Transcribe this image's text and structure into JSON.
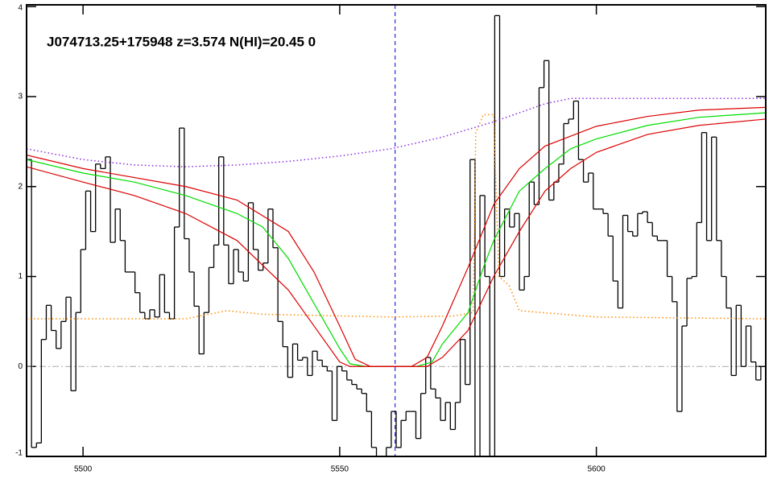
{
  "chart_data": {
    "type": "spectrum",
    "title": "J074713.25+175948 z=3.574 N(HI)=20.45 0",
    "xlim": [
      5489,
      5633
    ],
    "ylim": [
      -1,
      4.02
    ],
    "xticks": [
      5500,
      5550,
      5600
    ],
    "yticks": [
      -1,
      0,
      1,
      2,
      3,
      4
    ],
    "hline": 0,
    "vline": 5560.8,
    "series": [
      {
        "style": "step",
        "color": "#000000",
        "x": [
          5489.0,
          5489.96,
          5490.92,
          5491.88,
          5492.84,
          5493.8,
          5494.76,
          5495.72,
          5496.68,
          5497.64,
          5498.6,
          5499.56,
          5500.52,
          5501.48,
          5502.44,
          5503.4,
          5504.36,
          5505.32,
          5506.28,
          5507.24,
          5508.2,
          5509.16,
          5510.12,
          5511.08,
          5512.04,
          5513.0,
          5513.96,
          5514.92,
          5515.88,
          5516.84,
          5517.8,
          5518.76,
          5519.72,
          5520.68,
          5521.64,
          5522.6,
          5523.56,
          5524.52,
          5525.48,
          5526.44,
          5527.4,
          5528.36,
          5529.32,
          5530.28,
          5531.24,
          5532.2,
          5533.16,
          5534.12,
          5535.08,
          5536.04,
          5537.0,
          5537.96,
          5538.92,
          5539.88,
          5540.84,
          5541.8,
          5542.76,
          5543.72,
          5544.68,
          5545.64,
          5546.6,
          5547.56,
          5548.52,
          5549.48,
          5550.44,
          5551.4,
          5552.36,
          5553.32,
          5554.28,
          5555.24,
          5556.2,
          5557.16,
          5558.12,
          5559.08,
          5560.04,
          5561.0,
          5561.96,
          5562.92,
          5563.88,
          5564.84,
          5565.8,
          5566.76,
          5567.72,
          5568.68,
          5569.64,
          5570.6,
          5571.56,
          5572.52,
          5573.48,
          5574.44,
          5575.4,
          5576.36,
          5577.32,
          5578.28,
          5579.24,
          5580.2,
          5581.16,
          5582.12,
          5583.08,
          5584.04,
          5585.0,
          5585.96,
          5586.92,
          5587.88,
          5588.84,
          5589.8,
          5590.76,
          5591.72,
          5592.68,
          5593.64,
          5594.6,
          5595.56,
          5596.52,
          5597.48,
          5598.44,
          5599.4,
          5600.36,
          5601.32,
          5602.28,
          5603.24,
          5604.2,
          5605.16,
          5606.12,
          5607.08,
          5608.04,
          5609.0,
          5609.96,
          5610.92,
          5611.88,
          5612.84,
          5613.8,
          5614.76,
          5615.72,
          5616.68,
          5617.64,
          5618.6,
          5619.56,
          5620.52,
          5621.48,
          5622.44,
          5623.4,
          5624.36,
          5625.32,
          5626.28,
          5627.24,
          5628.2,
          5629.16,
          5630.12,
          5631.08,
          5632.04
        ],
        "values": [
          2.3,
          -0.9,
          -0.85,
          0.3,
          0.68,
          0.4,
          0.2,
          0.5,
          0.77,
          -0.27,
          0.6,
          1.3,
          1.95,
          1.5,
          2.25,
          2.2,
          2.33,
          1.38,
          1.75,
          1.4,
          1.05,
          1.05,
          0.82,
          0.6,
          0.53,
          0.63,
          0.55,
          1.02,
          0.6,
          0.53,
          1.55,
          2.65,
          1.42,
          1.05,
          0.67,
          0.14,
          0.6,
          1.1,
          1.35,
          2.33,
          1.35,
          0.92,
          1.3,
          1.05,
          0.95,
          1.82,
          1.3,
          1.07,
          1.15,
          1.75,
          1.32,
          0.5,
          0.22,
          -0.12,
          0.25,
          0.07,
          0.1,
          -0.1,
          0.17,
          0.07,
          0.0,
          -0.05,
          -0.6,
          0.0,
          -0.05,
          -0.15,
          -0.2,
          -0.25,
          -0.3,
          -0.5,
          -0.9,
          -1.0,
          -1.0,
          -0.9,
          -0.5,
          -0.9,
          -0.6,
          -0.5,
          -0.5,
          -0.8,
          -0.3,
          0.1,
          -0.25,
          -0.35,
          -0.6,
          -0.4,
          -0.7,
          -0.4,
          0.3,
          -0.2,
          2.3,
          -1.0,
          1.9,
          1.0,
          -1.0,
          3.9,
          1.0,
          1.75,
          1.55,
          1.7,
          0.85,
          1.0,
          2.05,
          1.8,
          3.1,
          3.4,
          1.85,
          2.05,
          2.25,
          2.7,
          2.75,
          2.95,
          2.3,
          2.05,
          2.15,
          1.75,
          1.75,
          1.7,
          1.45,
          0.95,
          0.65,
          1.68,
          1.5,
          1.45,
          1.7,
          1.72,
          1.6,
          1.45,
          1.4,
          1.4,
          1.0,
          0.72,
          -0.5,
          0.45,
          0.98,
          1.0,
          1.6,
          2.6,
          1.4,
          2.55,
          1.4,
          1.0,
          0.65,
          -0.1,
          0.68,
          0.0,
          0.45,
          0.05,
          -0.15,
          0.0
        ]
      },
      {
        "style": "dotted",
        "color": "#ff8c00",
        "x": [
          5489,
          5520,
          5528,
          5535,
          5560,
          5572,
          5576,
          5576.5,
          5578,
          5580,
          5581,
          5583,
          5585,
          5600,
          5633
        ],
        "values": [
          0.53,
          0.53,
          0.62,
          0.58,
          0.55,
          0.56,
          0.6,
          2.6,
          2.8,
          2.8,
          1.0,
          0.9,
          0.62,
          0.55,
          0.53
        ]
      },
      {
        "style": "dotted",
        "color": "#8a2be2",
        "x": [
          5489,
          5500,
          5510,
          5520,
          5530,
          5540,
          5550,
          5560,
          5570,
          5580,
          5590,
          5595,
          5633
        ],
        "values": [
          2.42,
          2.3,
          2.24,
          2.22,
          2.24,
          2.28,
          2.34,
          2.42,
          2.55,
          2.72,
          2.92,
          2.98,
          2.98
        ]
      },
      {
        "style": "solid",
        "color": "#00dd00",
        "x": [
          5489,
          5500,
          5510,
          5520,
          5530,
          5535,
          5540,
          5545,
          5550,
          5552,
          5555,
          5565,
          5568,
          5570,
          5575,
          5578,
          5580,
          5585,
          5590,
          5595,
          5600,
          5610,
          5620,
          5633
        ],
        "values": [
          2.3,
          2.15,
          2.05,
          1.9,
          1.7,
          1.55,
          1.2,
          0.7,
          0.2,
          0.03,
          0,
          0,
          0.05,
          0.25,
          0.6,
          1.1,
          1.4,
          1.95,
          2.2,
          2.42,
          2.53,
          2.68,
          2.77,
          2.82
        ]
      },
      {
        "style": "solid",
        "color": "#dd0000",
        "x": [
          5489,
          5500,
          5520,
          5530,
          5540,
          5545,
          5550,
          5553,
          5556,
          5564,
          5567,
          5570,
          5575,
          5580,
          5585,
          5590,
          5600,
          5610,
          5620,
          5633
        ],
        "values": [
          2.35,
          2.2,
          2.0,
          1.85,
          1.5,
          1.05,
          0.45,
          0.08,
          0,
          0,
          0.1,
          0.45,
          1.1,
          1.8,
          2.2,
          2.45,
          2.67,
          2.78,
          2.85,
          2.88
        ]
      },
      {
        "style": "solid",
        "color": "#dd0000",
        "x": [
          5489,
          5500,
          5510,
          5520,
          5530,
          5540,
          5545,
          5550,
          5552,
          5567,
          5570,
          5575,
          5580,
          5585,
          5590,
          5595,
          5600,
          5610,
          5620,
          5633
        ],
        "values": [
          2.22,
          2.05,
          1.9,
          1.7,
          1.4,
          0.85,
          0.45,
          0.05,
          0,
          0,
          0.1,
          0.4,
          1.0,
          1.5,
          1.95,
          2.2,
          2.38,
          2.58,
          2.68,
          2.75
        ]
      }
    ]
  }
}
